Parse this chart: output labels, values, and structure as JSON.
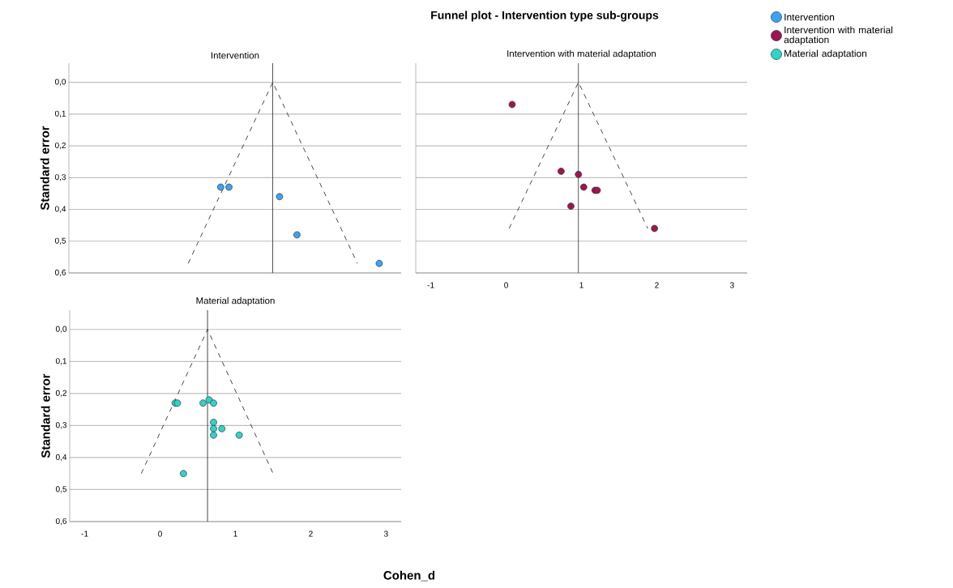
{
  "chart_data": [
    {
      "type": "scatter",
      "title": "Intervention",
      "ylabel": "Standard error",
      "annotations": [
        "Funnel plot - Intervention type sub-groups"
      ],
      "xlim": [
        -1.2,
        3.2
      ],
      "ylim": [
        0.6,
        -0.06
      ],
      "xticks": [
        -1,
        0,
        1,
        2,
        3
      ],
      "yticks": [
        {
          "value": 0,
          "label": "0,0"
        },
        {
          "value": 0.1,
          "label": "0,1"
        },
        {
          "value": 0.2,
          "label": "0,2"
        },
        {
          "value": 0.3,
          "label": "0,3"
        },
        {
          "value": 0.4,
          "label": "0,4"
        },
        {
          "value": 0.5,
          "label": "0,5"
        },
        {
          "value": 0.6,
          "label": "0,6"
        }
      ],
      "tick_labels": "y",
      "grid": "y",
      "legend": "right",
      "ref_lines": [
        {
          "axis": "x",
          "value": 1.5,
          "color": "#333333",
          "line_style": "solid"
        }
      ],
      "series": [
        {
          "name": "Intervention",
          "color": "#3aa3f5",
          "marker": "circle",
          "x": [
            0.81,
            0.92,
            1.59,
            1.82,
            2.91
          ],
          "values": [
            0.33,
            0.33,
            0.36,
            0.48,
            0.57
          ]
        },
        {
          "type": "line",
          "color": "#333333",
          "line_style": "dashed",
          "marker": "none",
          "x": [
            0.38,
            1.5,
            2.62
          ],
          "values": [
            0.57,
            0,
            0.57
          ]
        }
      ]
    },
    {
      "type": "scatter",
      "title": "Intervention with material adaptation",
      "xlim": [
        -1.2,
        3.2
      ],
      "ylim": [
        0.6,
        -0.06
      ],
      "xticks": [
        -1,
        0,
        1,
        2,
        3
      ],
      "yticks": [
        {
          "value": 0,
          "label": null
        },
        {
          "value": 0.1,
          "label": null
        },
        {
          "value": 0.2,
          "label": null
        },
        {
          "value": 0.3,
          "label": null
        },
        {
          "value": 0.4,
          "label": null
        },
        {
          "value": 0.5,
          "label": null
        },
        {
          "value": 0.6,
          "label": null
        }
      ],
      "tick_labels": "x",
      "grid": "y",
      "legend": "right",
      "ref_lines": [
        {
          "axis": "x",
          "value": 0.96,
          "color": "#333333",
          "line_style": "solid"
        }
      ],
      "series": [
        {
          "name": "Intervention with material adaptation",
          "color": "#9e1550",
          "marker": "circle",
          "x": [
            0.08,
            0.73,
            0.96,
            1.03,
            1.18,
            1.21,
            0.86,
            1.97
          ],
          "values": [
            0.07,
            0.28,
            0.29,
            0.33,
            0.34,
            0.34,
            0.39,
            0.46
          ]
        },
        {
          "type": "line",
          "color": "#333333",
          "line_style": "dashed",
          "marker": "none",
          "x": [
            0.04,
            0.96,
            1.88
          ],
          "values": [
            0.46,
            0,
            0.46
          ]
        }
      ]
    },
    {
      "type": "scatter",
      "title": "Material adaptation",
      "xlabel": "Cohen_d",
      "ylabel": "Standard error",
      "xlim": [
        -1.2,
        3.2
      ],
      "ylim": [
        0.6,
        -0.06
      ],
      "xticks": [
        -1,
        0,
        1,
        2,
        3
      ],
      "yticks": [
        {
          "value": 0,
          "label": "0,0"
        },
        {
          "value": 0.1,
          "label": "0,1"
        },
        {
          "value": 0.2,
          "label": "0,2"
        },
        {
          "value": 0.3,
          "label": "0,3"
        },
        {
          "value": 0.4,
          "label": "0,4"
        },
        {
          "value": 0.5,
          "label": "0,5"
        },
        {
          "value": 0.6,
          "label": "0,6"
        }
      ],
      "grid": "y",
      "legend": "right",
      "ref_lines": [
        {
          "axis": "x",
          "value": 0.63,
          "color": "#333333",
          "line_style": "solid"
        }
      ],
      "series": [
        {
          "name": "Material adaptation",
          "color": "#2dd4c8",
          "marker": "circle",
          "x": [
            0.2,
            0.23,
            0.57,
            0.65,
            0.71,
            0.71,
            0.71,
            0.82,
            0.71,
            1.05,
            0.31
          ],
          "values": [
            0.23,
            0.23,
            0.23,
            0.22,
            0.23,
            0.29,
            0.31,
            0.31,
            0.33,
            0.33,
            0.45
          ]
        },
        {
          "type": "line",
          "color": "#333333",
          "line_style": "dashed",
          "marker": "none",
          "x": [
            -0.25,
            0.63,
            1.5
          ],
          "values": [
            0.45,
            0,
            0.45
          ]
        }
      ]
    }
  ]
}
